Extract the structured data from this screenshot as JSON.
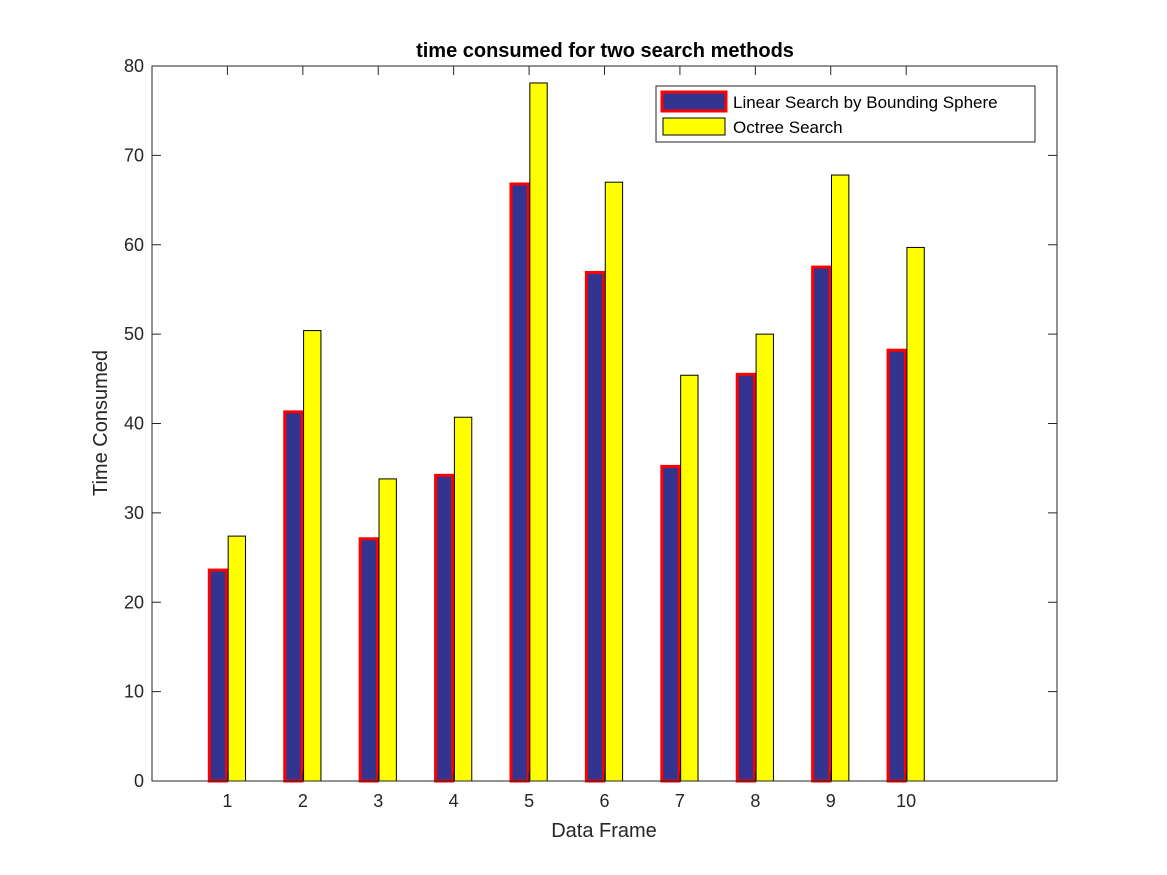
{
  "chart_data": {
    "type": "bar",
    "title": "time consumed for two search methods",
    "xlabel": "Data Frame",
    "ylabel": "Time Consumed",
    "categories": [
      "1",
      "2",
      "3",
      "4",
      "5",
      "6",
      "7",
      "8",
      "9",
      "10"
    ],
    "xlim": [
      0,
      12
    ],
    "ylim": [
      0,
      80
    ],
    "yticks": [
      0,
      10,
      20,
      30,
      40,
      50,
      60,
      70,
      80
    ],
    "grid": false,
    "legend_position": "top-right",
    "series": [
      {
        "name": "Linear Search by Bounding Sphere",
        "values": [
          23.6,
          41.3,
          27.1,
          34.2,
          66.8,
          56.9,
          35.2,
          45.5,
          57.5,
          48.2
        ],
        "fill_color": "#33348f",
        "edge_color": "#ff0000"
      },
      {
        "name": "Octree Search",
        "values": [
          27.4,
          50.4,
          33.8,
          40.7,
          78.1,
          67.0,
          45.4,
          50.0,
          67.8,
          59.7
        ],
        "fill_color": "#ffff00",
        "edge_color": "#000000"
      }
    ]
  }
}
